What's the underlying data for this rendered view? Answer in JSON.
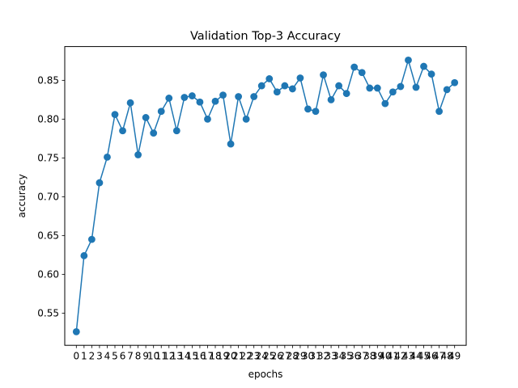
{
  "chart_data": {
    "type": "line",
    "title": "Validation Top-3 Accuracy",
    "xlabel": "epochs",
    "ylabel": "accuracy",
    "x": [
      0,
      1,
      2,
      3,
      4,
      5,
      6,
      7,
      8,
      9,
      10,
      11,
      12,
      13,
      14,
      15,
      16,
      17,
      18,
      19,
      20,
      21,
      22,
      23,
      24,
      25,
      26,
      27,
      28,
      29,
      30,
      31,
      32,
      33,
      34,
      35,
      36,
      37,
      38,
      39,
      40,
      41,
      42,
      43,
      44,
      45,
      46,
      47,
      48,
      49
    ],
    "series": [
      {
        "color": "#1f77b4",
        "values": [
          0.526,
          0.624,
          0.645,
          0.718,
          0.751,
          0.806,
          0.785,
          0.821,
          0.754,
          0.802,
          0.782,
          0.81,
          0.827,
          0.785,
          0.828,
          0.83,
          0.822,
          0.8,
          0.823,
          0.831,
          0.768,
          0.829,
          0.8,
          0.829,
          0.843,
          0.852,
          0.835,
          0.843,
          0.839,
          0.853,
          0.813,
          0.81,
          0.857,
          0.825,
          0.843,
          0.833,
          0.867,
          0.86,
          0.84,
          0.84,
          0.82,
          0.835,
          0.842,
          0.876,
          0.841,
          0.868,
          0.858,
          0.81,
          0.838,
          0.847
        ]
      }
    ],
    "xlim": [
      -1.5,
      50.5
    ],
    "ylim": [
      0.5085,
      0.8935
    ],
    "yticks": [
      0.55,
      0.6,
      0.65,
      0.7,
      0.75,
      0.8,
      0.85
    ],
    "ytick_labels": [
      "0.55",
      "0.60",
      "0.65",
      "0.70",
      "0.75",
      "0.80",
      "0.85"
    ],
    "grid": false,
    "legend": "none"
  }
}
